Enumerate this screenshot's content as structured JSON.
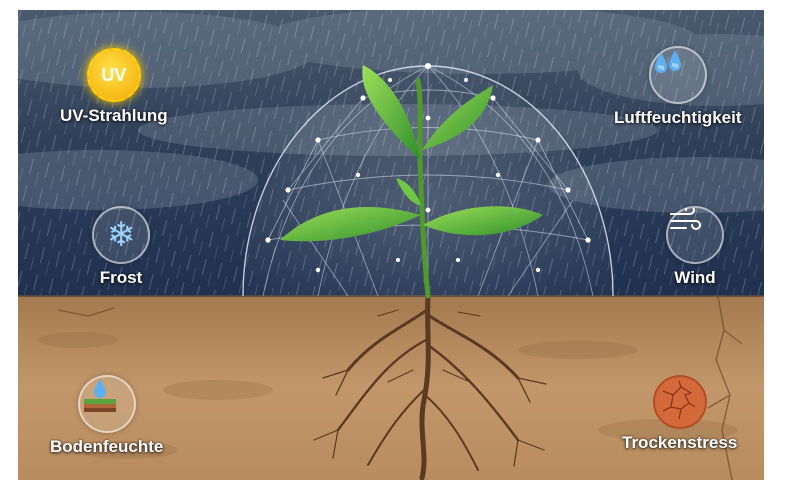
{
  "stressors": {
    "uv": {
      "label": "UV-Strahlung",
      "icon": "sun-uv-icon",
      "icon_text": "UV"
    },
    "humidity": {
      "label": "Luftfeuchtigkeit",
      "icon": "water-drops-percent-icon"
    },
    "frost": {
      "label": "Frost",
      "icon": "snowflake-icon"
    },
    "wind": {
      "label": "Wind",
      "icon": "wind-gust-icon"
    },
    "soil_moisture": {
      "label": "Bodenfeuchte",
      "icon": "soil-moisture-drop-icon"
    },
    "drought": {
      "label": "Trockenstress",
      "icon": "cracked-earth-icon"
    }
  },
  "colors": {
    "sky_top": "#3d4a5c",
    "sky_bottom": "#22344f",
    "soil": "#b58a5c",
    "leaf": "#5fbf3a",
    "root": "#5a3a22",
    "uv_sun": "#f5b800"
  }
}
